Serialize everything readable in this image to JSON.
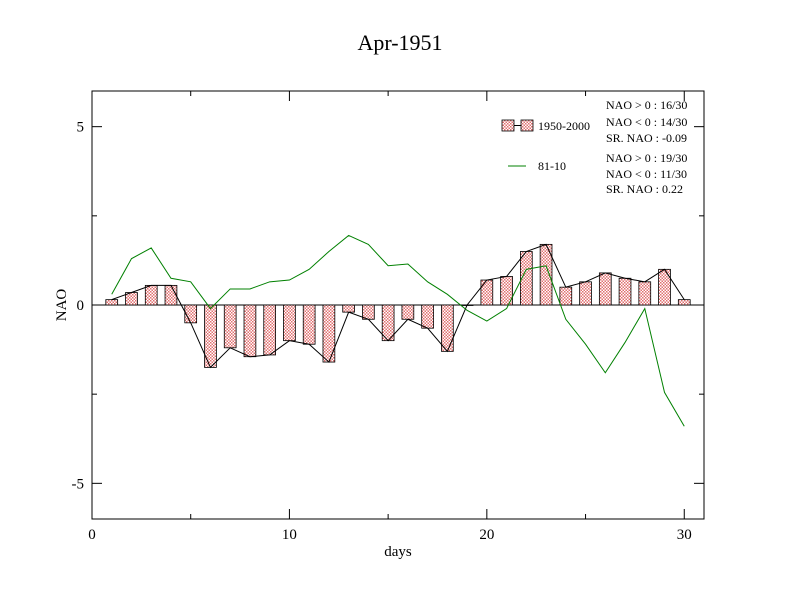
{
  "chart_data": {
    "type": "bar",
    "title": "Apr-1951",
    "xlabel": "days",
    "ylabel": "NAO",
    "xlim": [
      0,
      31
    ],
    "ylim": [
      -6,
      6
    ],
    "x_ticks": [
      0,
      10,
      20,
      30
    ],
    "y_ticks": [
      -5,
      0,
      5
    ],
    "grid": false,
    "legend_position": "top-right",
    "x": [
      1,
      2,
      3,
      4,
      5,
      6,
      7,
      8,
      9,
      10,
      11,
      12,
      13,
      14,
      15,
      16,
      17,
      18,
      19,
      20,
      21,
      22,
      23,
      24,
      25,
      26,
      27,
      28,
      29,
      30
    ],
    "series": [
      {
        "name": "1950-2000",
        "kind": "bar+line",
        "color": "#e07070",
        "line_color": "#000000",
        "values": [
          0.15,
          0.35,
          0.55,
          0.55,
          -0.5,
          -1.75,
          -1.2,
          -1.45,
          -1.4,
          -1.0,
          -1.1,
          -1.6,
          -0.2,
          -0.4,
          -1.0,
          -0.4,
          -0.65,
          -1.3,
          0.0,
          0.7,
          0.8,
          1.5,
          1.7,
          0.5,
          0.65,
          0.9,
          0.75,
          0.65,
          1.0,
          0.15
        ]
      },
      {
        "name": "81-10",
        "kind": "line",
        "color": "#008000",
        "values": [
          0.3,
          1.3,
          1.6,
          0.75,
          0.65,
          -0.1,
          0.45,
          0.45,
          0.65,
          0.7,
          1.0,
          1.5,
          1.95,
          1.7,
          1.1,
          1.15,
          0.65,
          0.3,
          -0.15,
          -0.45,
          -0.1,
          1.0,
          1.1,
          -0.4,
          -1.1,
          -1.9,
          -1.05,
          -0.1,
          -2.45,
          -3.4
        ]
      }
    ],
    "stats": [
      [
        "NAO > 0 : 16/30",
        "NAO < 0 : 14/30",
        "SR. NAO : -0.09"
      ],
      [
        "NAO > 0 : 19/30",
        "NAO < 0 : 11/30",
        "SR. NAO :  0.22"
      ]
    ]
  }
}
